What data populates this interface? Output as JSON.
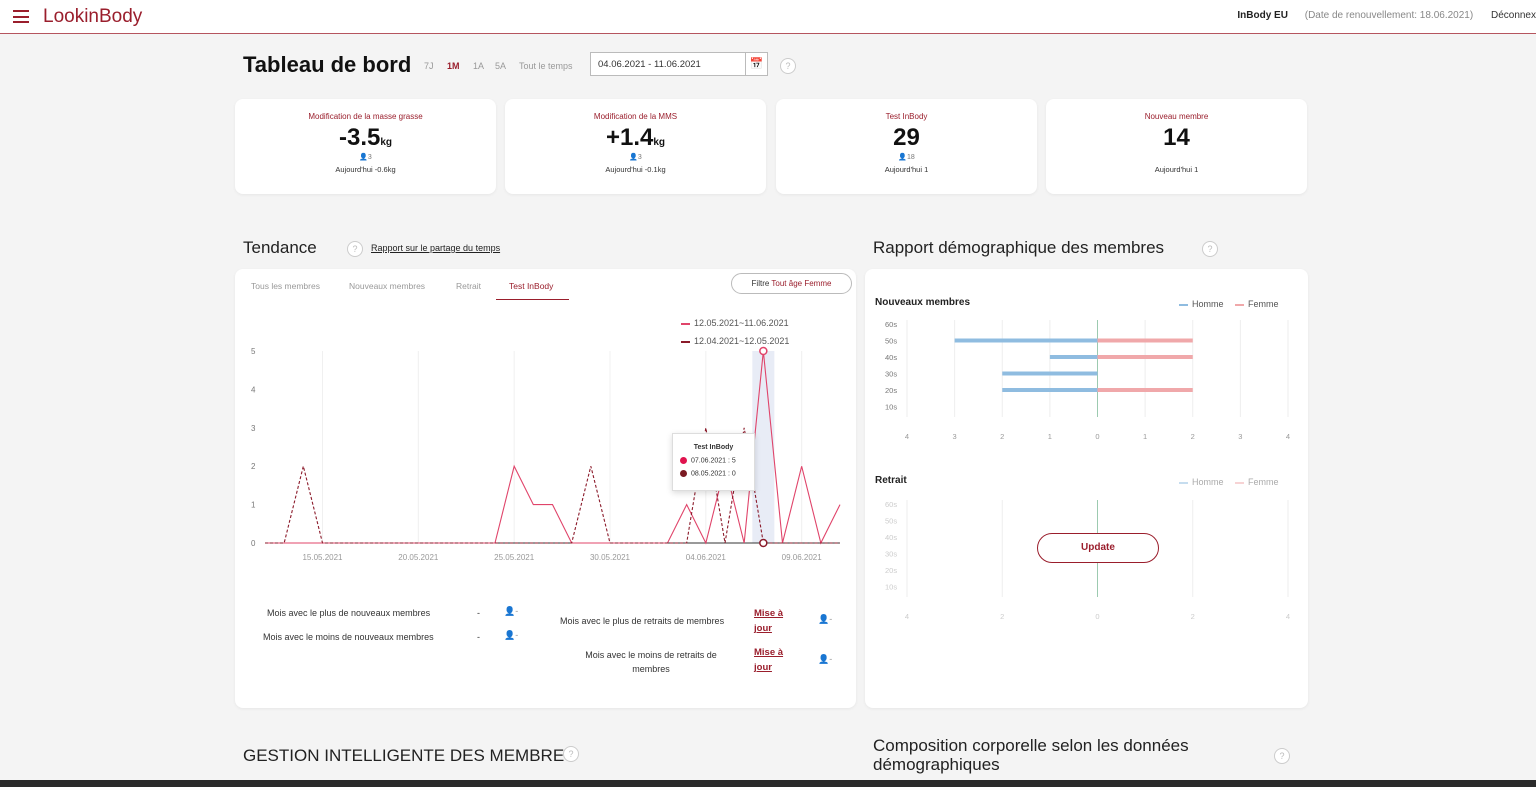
{
  "header": {
    "logo": "LookinBody",
    "org": "InBody EU",
    "renewal": "(Date de renouvellement: 18.06.2021)",
    "logout": "Déconnex"
  },
  "dashboard": {
    "title": "Tableau de bord",
    "periods": [
      "7J",
      "1M",
      "1A",
      "5A",
      "Tout le temps"
    ],
    "active_period": "1M",
    "date_range": "04.06.2021 - 11.06.2021"
  },
  "stats": [
    {
      "label": "Modification de la masse grasse",
      "value": "-3.5",
      "unit": "kg",
      "count": "3",
      "today_label": "Aujourd'hui",
      "today_value": "-0.6",
      "today_unit": "kg"
    },
    {
      "label": "Modification de la MMS",
      "value": "+1.4",
      "unit": "kg",
      "count": "3",
      "today_label": "Aujourd'hui",
      "today_value": "-0.1",
      "today_unit": "kg"
    },
    {
      "label": "Test InBody",
      "value": "29",
      "unit": "",
      "count": "18",
      "today_label": "Aujourd'hui",
      "today_value": "1",
      "today_unit": ""
    },
    {
      "label": "Nouveau membre",
      "value": "14",
      "unit": "",
      "count": "",
      "today_label": "Aujourd'hui",
      "today_value": "1",
      "today_unit": ""
    }
  ],
  "trend": {
    "title": "Tendance",
    "link": "Rapport sur le partage du temps",
    "tabs": [
      "Tous les membres",
      "Nouveaux membres",
      "Retrait",
      "Test InBody"
    ],
    "active_tab": "Test InBody",
    "filter_label": "Filtre",
    "filter_value": "Tout âge Femme",
    "legend": [
      "12.05.2021~11.06.2021",
      "12.04.2021~12.05.2021"
    ],
    "tooltip": {
      "title": "Test InBody",
      "row1": "07.06.2021 : 5",
      "row2": "08.05.2021 : 0"
    },
    "stats_left": [
      {
        "label": "Mois avec le plus de nouveaux membres",
        "value": "-",
        "icon_value": "-"
      },
      {
        "label": "Mois avec le moins de nouveaux membres",
        "value": "-",
        "icon_value": "-"
      }
    ],
    "stats_right": [
      {
        "label": "Mois avec le plus de retraits de membres",
        "link": "Mise à jour",
        "icon_value": "-"
      },
      {
        "label": "Mois avec le moins de retraits de membres",
        "link": "Mise à jour",
        "icon_value": "-"
      }
    ]
  },
  "chart_data": [
    {
      "type": "line",
      "title": "",
      "x": [
        "12.05.2021",
        "13.05.2021",
        "14.05.2021",
        "15.05.2021",
        "16.05.2021",
        "17.05.2021",
        "18.05.2021",
        "19.05.2021",
        "20.05.2021",
        "21.05.2021",
        "22.05.2021",
        "23.05.2021",
        "24.05.2021",
        "25.05.2021",
        "26.05.2021",
        "27.05.2021",
        "28.05.2021",
        "29.05.2021",
        "30.05.2021",
        "31.05.2021",
        "01.06.2021",
        "02.06.2021",
        "03.06.2021",
        "04.06.2021",
        "05.06.2021",
        "06.06.2021",
        "07.06.2021",
        "08.06.2021",
        "09.06.2021",
        "10.06.2021",
        "11.06.2021"
      ],
      "x_tick_labels": [
        "15.05.2021",
        "20.05.2021",
        "25.05.2021",
        "30.05.2021",
        "04.06.2021",
        "09.06.2021"
      ],
      "ylim": [
        0,
        5
      ],
      "y_ticks": [
        "0",
        "1",
        "2",
        "3",
        "4",
        "5"
      ],
      "series": [
        {
          "name": "12.05.2021~11.06.2021",
          "color": "#e0446a",
          "style": "solid",
          "values": [
            0,
            0,
            0,
            0,
            0,
            0,
            0,
            0,
            0,
            0,
            0,
            0,
            0,
            2,
            1,
            1,
            0,
            0,
            0,
            0,
            0,
            0,
            1,
            0,
            2,
            0,
            5,
            0,
            2,
            0,
            1
          ]
        },
        {
          "name": "12.04.2021~12.05.2021",
          "color": "#8b1a2a",
          "style": "dashed",
          "values": [
            0,
            0,
            2,
            0,
            0,
            0,
            0,
            0,
            0,
            0,
            0,
            0,
            0,
            0,
            0,
            0,
            0,
            2,
            0,
            0,
            0,
            0,
            0,
            3,
            0,
            3,
            0,
            0,
            0,
            0,
            0
          ]
        }
      ],
      "highlight_index": 26
    },
    {
      "type": "bar",
      "title": "Nouveaux membres",
      "orientation": "horizontal-diverging",
      "categories": [
        "60s",
        "50s",
        "40s",
        "30s",
        "20s",
        "10s"
      ],
      "x_tick_labels": [
        "4",
        "3",
        "2",
        "1",
        "0",
        "1",
        "2",
        "3",
        "4"
      ],
      "xlim": [
        -4,
        4
      ],
      "legend": [
        "Homme",
        "Femme"
      ],
      "series": [
        {
          "name": "Homme",
          "color": "#8fbce0",
          "values": [
            0,
            3,
            1,
            2,
            2,
            0
          ]
        },
        {
          "name": "Femme",
          "color": "#f0a8aa",
          "values": [
            0,
            2,
            2,
            0,
            2,
            0
          ]
        }
      ]
    },
    {
      "type": "bar",
      "title": "Retrait",
      "orientation": "horizontal-diverging",
      "categories": [
        "60s",
        "50s",
        "40s",
        "30s",
        "20s",
        "10s"
      ],
      "x_tick_labels": [
        "4",
        "2",
        "0",
        "2",
        "4"
      ],
      "xlim": [
        -4,
        4
      ],
      "legend": [
        "Homme",
        "Femme"
      ],
      "series": [
        {
          "name": "Homme",
          "values": [
            0,
            0,
            0,
            0,
            0,
            0
          ]
        },
        {
          "name": "Femme",
          "values": [
            0,
            0,
            0,
            0,
            0,
            0
          ]
        }
      ]
    }
  ],
  "demographics": {
    "title": "Rapport démographique des membres",
    "update_button": "Update"
  },
  "bottom": {
    "smart_title": "GESTION INTELLIGENTE DES MEMBRES",
    "composition_title_1": "Composition corporelle selon les données",
    "composition_title_2": "démographiques"
  },
  "icons": {
    "menu": "hamburger-icon",
    "calendar": "calendar-icon",
    "help": "help-icon",
    "person": "person-icon"
  },
  "colors": {
    "brand": "#9a1e2c",
    "current_series": "#e0446a",
    "previous_series": "#8b1a2a",
    "male": "#8fbce0",
    "female": "#f0a8aa"
  }
}
